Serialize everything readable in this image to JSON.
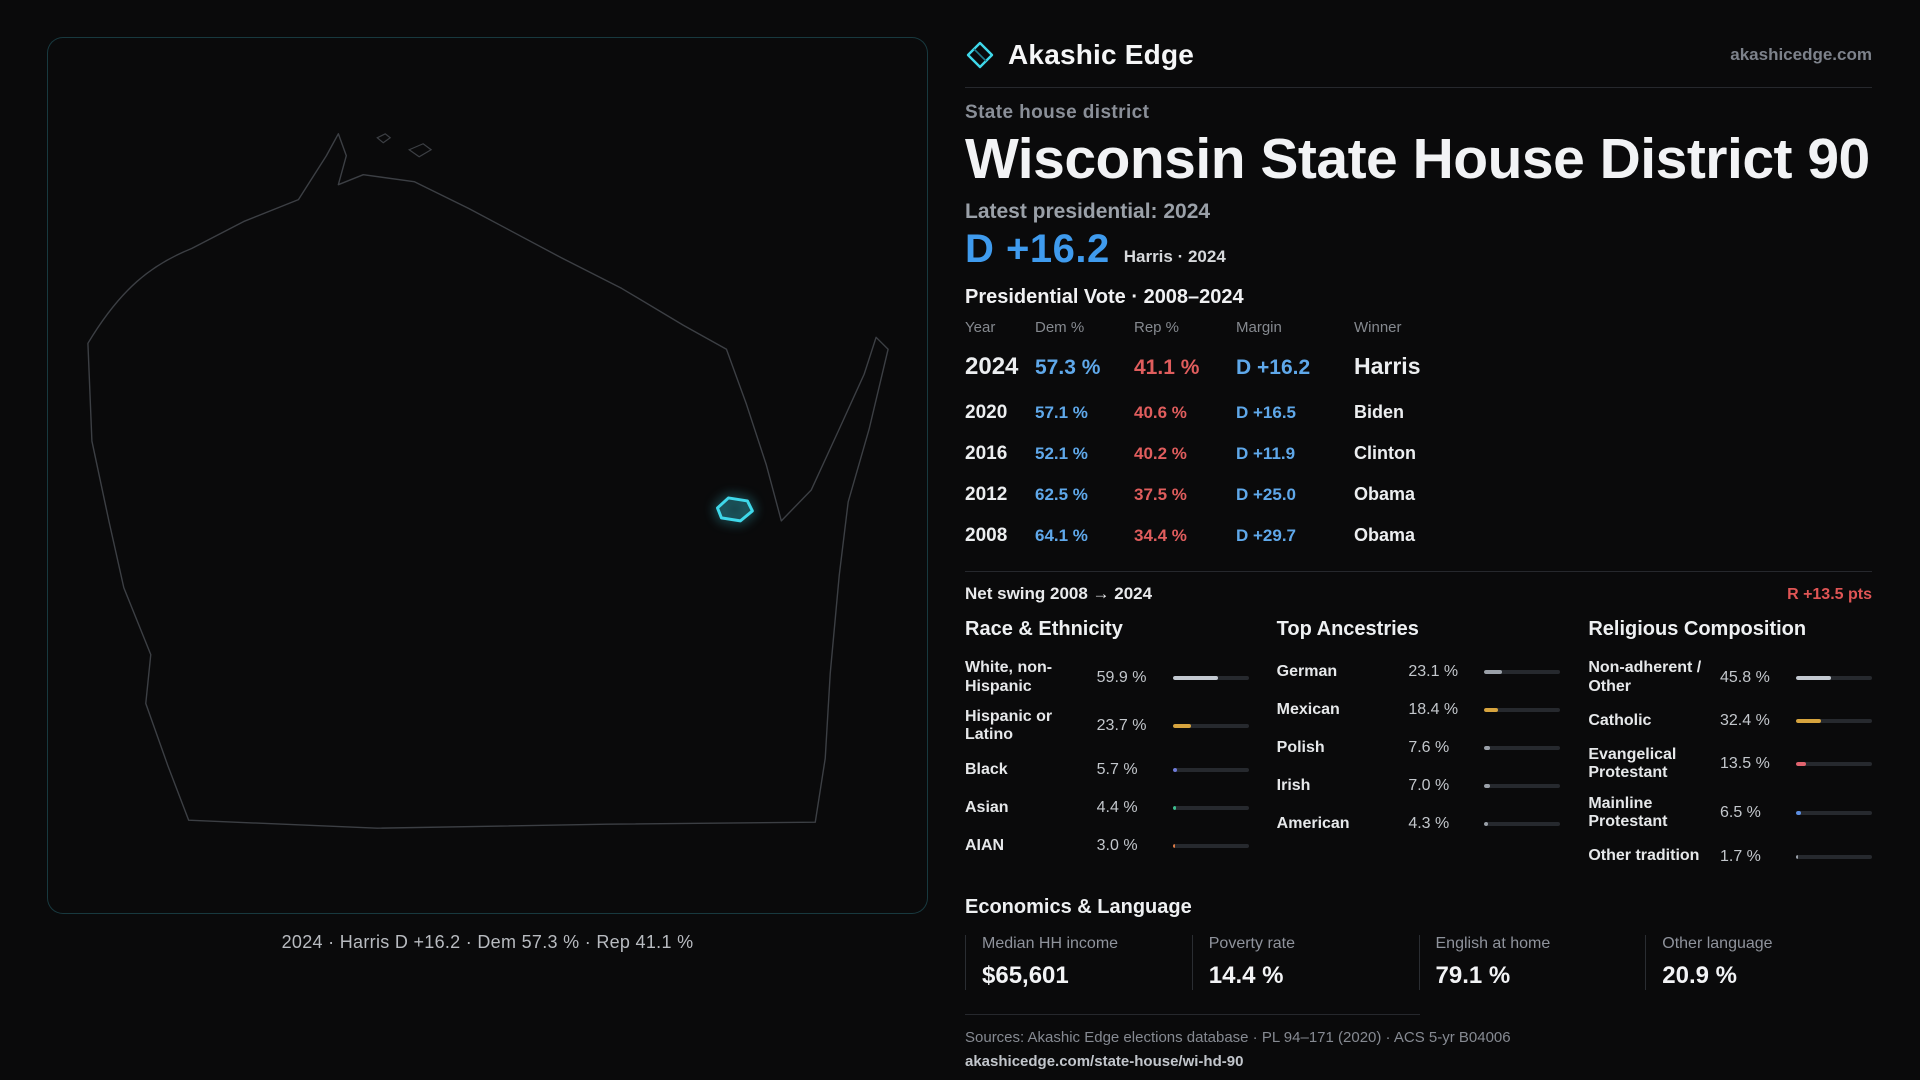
{
  "brand": {
    "name": "Akashic Edge",
    "domain": "akashicedge.com",
    "accent_color": "#3fd8ea"
  },
  "map": {
    "caption": "2024 · Harris D +16.2 · Dem 57.3 % · Rep 41.1 %"
  },
  "page": {
    "kicker": "State house district",
    "title": "Wisconsin State House District 90",
    "latest_label": "Latest presidential: 2024",
    "headline_margin": "D +16.2",
    "headline_sub": "Harris · 2024",
    "dem_color": "#5fa8ea",
    "rep_color": "#e05d5d"
  },
  "vote_table": {
    "title": "Presidential Vote · 2008–2024",
    "headers": {
      "year": "Year",
      "dem": "Dem %",
      "rep": "Rep %",
      "margin": "Margin",
      "winner": "Winner"
    },
    "rows": [
      {
        "year": "2024",
        "dem": "57.3 %",
        "rep": "41.1 %",
        "margin": "D +16.2",
        "winner": "Harris"
      },
      {
        "year": "2020",
        "dem": "57.1 %",
        "rep": "40.6 %",
        "margin": "D +16.5",
        "winner": "Biden"
      },
      {
        "year": "2016",
        "dem": "52.1 %",
        "rep": "40.2 %",
        "margin": "D +11.9",
        "winner": "Clinton"
      },
      {
        "year": "2012",
        "dem": "62.5 %",
        "rep": "37.5 %",
        "margin": "D +25.0",
        "winner": "Obama"
      },
      {
        "year": "2008",
        "dem": "64.1 %",
        "rep": "34.4 %",
        "margin": "D +29.7",
        "winner": "Obama"
      }
    ]
  },
  "net_swing": {
    "label": "Net swing 2008 → 2024",
    "value": "R +13.5 pts"
  },
  "demographics": [
    {
      "title": "Race & Ethnicity",
      "items": [
        {
          "label": "White, non-Hispanic",
          "value": "59.9 %",
          "pct": 59.9,
          "color": "#c3c9d1"
        },
        {
          "label": "Hispanic or Latino",
          "value": "23.7 %",
          "pct": 23.7,
          "color": "#d7a43e"
        },
        {
          "label": "Black",
          "value": "5.7 %",
          "pct": 5.7,
          "color": "#6f7bd9"
        },
        {
          "label": "Asian",
          "value": "4.4 %",
          "pct": 4.4,
          "color": "#3dbd8e"
        },
        {
          "label": "AIAN",
          "value": "3.0 %",
          "pct": 3.0,
          "color": "#dd7a45"
        }
      ]
    },
    {
      "title": "Top Ancestries",
      "items": [
        {
          "label": "German",
          "value": "23.1 %",
          "pct": 23.1,
          "color": "#9aa0a8"
        },
        {
          "label": "Mexican",
          "value": "18.4 %",
          "pct": 18.4,
          "color": "#d7a43e"
        },
        {
          "label": "Polish",
          "value": "7.6 %",
          "pct": 7.6,
          "color": "#9aa0a8"
        },
        {
          "label": "Irish",
          "value": "7.0 %",
          "pct": 7.0,
          "color": "#9aa0a8"
        },
        {
          "label": "American",
          "value": "4.3 %",
          "pct": 4.3,
          "color": "#9aa0a8"
        }
      ]
    },
    {
      "title": "Religious Composition",
      "items": [
        {
          "label": "Non-adherent / Other",
          "value": "45.8 %",
          "pct": 45.8,
          "color": "#c3c9d1"
        },
        {
          "label": "Catholic",
          "value": "32.4 %",
          "pct": 32.4,
          "color": "#d7a43e"
        },
        {
          "label": "Evangelical Protestant",
          "value": "13.5 %",
          "pct": 13.5,
          "color": "#e0636e"
        },
        {
          "label": "Mainline Protestant",
          "value": "6.5 %",
          "pct": 6.5,
          "color": "#5b8de0"
        },
        {
          "label": "Other tradition",
          "value": "1.7 %",
          "pct": 1.7,
          "color": "#9aa0a8"
        }
      ]
    }
  ],
  "economics": {
    "title": "Economics & Language",
    "stats": [
      {
        "label": "Median HH income",
        "value": "$65,601"
      },
      {
        "label": "Poverty rate",
        "value": "14.4 %"
      },
      {
        "label": "English at home",
        "value": "79.1 %"
      },
      {
        "label": "Other language",
        "value": "20.9 %"
      }
    ]
  },
  "footer": {
    "sources": "Sources: Akashic Edge elections database · PL 94–171 (2020) · ACS 5-yr B04006",
    "permalink": "akashicedge.com/state-house/wi-hd-90"
  },
  "chart_data": [
    {
      "type": "table",
      "title": "Presidential Vote · 2008–2024",
      "columns": [
        "Year",
        "Dem %",
        "Rep %",
        "Margin",
        "Winner"
      ],
      "rows": [
        [
          2024,
          57.3,
          41.1,
          "D +16.2",
          "Harris"
        ],
        [
          2020,
          57.1,
          40.6,
          "D +16.5",
          "Biden"
        ],
        [
          2016,
          52.1,
          40.2,
          "D +11.9",
          "Clinton"
        ],
        [
          2012,
          62.5,
          37.5,
          "D +25.0",
          "Obama"
        ],
        [
          2008,
          64.1,
          34.4,
          "D +29.7",
          "Obama"
        ]
      ],
      "annotations": [
        "Net swing 2008 → 2024: R +13.5 pts",
        "Latest presidential 2024: D +16.2 (Harris)"
      ]
    },
    {
      "type": "bar",
      "title": "Race & Ethnicity",
      "categories": [
        "White, non-Hispanic",
        "Hispanic or Latino",
        "Black",
        "Asian",
        "AIAN"
      ],
      "values": [
        59.9,
        23.7,
        5.7,
        4.4,
        3.0
      ],
      "xlabel": "",
      "ylabel": "%",
      "xlim": [
        0,
        100
      ]
    },
    {
      "type": "bar",
      "title": "Top Ancestries",
      "categories": [
        "German",
        "Mexican",
        "Polish",
        "Irish",
        "American"
      ],
      "values": [
        23.1,
        18.4,
        7.6,
        7.0,
        4.3
      ],
      "xlabel": "",
      "ylabel": "%",
      "xlim": [
        0,
        100
      ]
    },
    {
      "type": "bar",
      "title": "Religious Composition",
      "categories": [
        "Non-adherent / Other",
        "Catholic",
        "Evangelical Protestant",
        "Mainline Protestant",
        "Other tradition"
      ],
      "values": [
        45.8,
        32.4,
        13.5,
        6.5,
        1.7
      ],
      "xlabel": "",
      "ylabel": "%",
      "xlim": [
        0,
        100
      ]
    },
    {
      "type": "table",
      "title": "Economics & Language",
      "columns": [
        "Median HH income",
        "Poverty rate",
        "English at home",
        "Other language"
      ],
      "rows": [
        [
          "$65,601",
          "14.4 %",
          "79.1 %",
          "20.9 %"
        ]
      ]
    }
  ]
}
